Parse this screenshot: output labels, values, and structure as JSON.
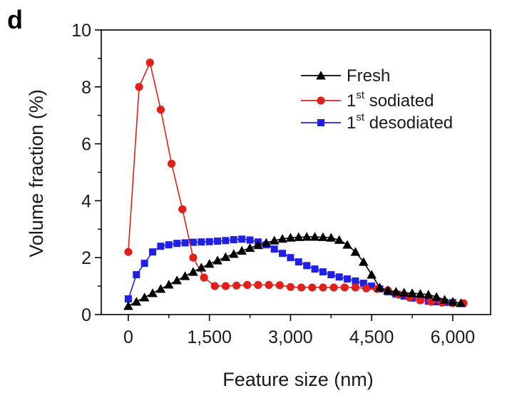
{
  "chart_data": {
    "type": "line",
    "panel_label": "d",
    "xlabel": "Feature size (nm)",
    "ylabel": "Volume fraction (%)",
    "xlim": [
      -500,
      6700
    ],
    "ylim": [
      0,
      10
    ],
    "x_ticks": [
      0,
      1500,
      3000,
      4500,
      6000
    ],
    "x_tick_labels": [
      "0",
      "1,500",
      "3,000",
      "4,500",
      "6,000"
    ],
    "y_ticks": [
      0,
      2,
      4,
      6,
      8,
      10
    ],
    "y_tick_labels": [
      "0",
      "2",
      "4",
      "6",
      "8",
      "10"
    ],
    "grid": false,
    "legend_position": "top-right",
    "series": [
      {
        "name": "Fresh",
        "name_parts": [
          {
            "text": "Fresh",
            "sup": false
          }
        ],
        "color": "#000000",
        "marker": "triangle",
        "x": [
          0,
          150,
          300,
          450,
          600,
          750,
          900,
          1050,
          1200,
          1350,
          1500,
          1650,
          1800,
          1950,
          2100,
          2250,
          2400,
          2550,
          2700,
          2850,
          3000,
          3150,
          3300,
          3450,
          3600,
          3750,
          3900,
          4050,
          4200,
          4350,
          4500,
          4650,
          4800,
          4950,
          5100,
          5250,
          5400,
          5550,
          5700,
          5850,
          6000,
          6150
        ],
        "y": [
          0.3,
          0.45,
          0.6,
          0.75,
          0.9,
          1.05,
          1.2,
          1.35,
          1.5,
          1.65,
          1.78,
          1.9,
          2.02,
          2.13,
          2.24,
          2.34,
          2.44,
          2.52,
          2.6,
          2.66,
          2.7,
          2.72,
          2.73,
          2.73,
          2.72,
          2.7,
          2.62,
          2.45,
          2.2,
          1.85,
          1.4,
          0.95,
          0.85,
          0.8,
          0.77,
          0.75,
          0.73,
          0.7,
          0.62,
          0.52,
          0.45,
          0.4
        ]
      },
      {
        "name": "1st sodiated",
        "name_parts": [
          {
            "text": "1",
            "sup": false
          },
          {
            "text": "st",
            "sup": true
          },
          {
            "text": " sodiated",
            "sup": false
          }
        ],
        "color": "#e0201b",
        "marker": "circle",
        "x": [
          0,
          200,
          400,
          600,
          800,
          1000,
          1200,
          1400,
          1600,
          1800,
          2000,
          2200,
          2400,
          2600,
          2800,
          3000,
          3200,
          3400,
          3600,
          3800,
          4000,
          4200,
          4400,
          4600,
          4800,
          5000,
          5200,
          5400,
          5600,
          5800,
          6000,
          6200
        ],
        "y": [
          2.2,
          8.0,
          8.85,
          7.2,
          5.3,
          3.7,
          2.0,
          1.3,
          1.0,
          1.0,
          1.02,
          1.04,
          1.04,
          1.04,
          1.03,
          0.97,
          0.95,
          0.95,
          0.95,
          0.95,
          0.95,
          0.95,
          0.92,
          0.9,
          0.85,
          0.7,
          0.6,
          0.5,
          0.45,
          0.42,
          0.4,
          0.4
        ]
      },
      {
        "name": "1st desodiated",
        "name_parts": [
          {
            "text": "1",
            "sup": false
          },
          {
            "text": "st",
            "sup": true
          },
          {
            "text": " desodiated",
            "sup": false
          }
        ],
        "color": "#1f1fe6",
        "marker": "square",
        "x": [
          0,
          150,
          300,
          450,
          600,
          750,
          900,
          1050,
          1200,
          1350,
          1500,
          1650,
          1800,
          1950,
          2100,
          2250,
          2400,
          2550,
          2700,
          2850,
          3000,
          3150,
          3300,
          3450,
          3600,
          3750,
          3900,
          4050,
          4200,
          4350,
          4500,
          4650,
          4800,
          4950,
          5100,
          5250,
          5400,
          5550,
          5700,
          5850,
          6000
        ],
        "y": [
          0.55,
          1.4,
          1.8,
          2.2,
          2.4,
          2.45,
          2.5,
          2.52,
          2.54,
          2.55,
          2.56,
          2.58,
          2.6,
          2.63,
          2.65,
          2.62,
          2.55,
          2.45,
          2.3,
          2.15,
          2.0,
          1.85,
          1.72,
          1.6,
          1.5,
          1.4,
          1.32,
          1.25,
          1.18,
          1.1,
          1.0,
          0.9,
          0.8,
          0.72,
          0.65,
          0.58,
          0.52,
          0.47,
          0.45,
          0.43,
          0.42
        ]
      }
    ]
  }
}
